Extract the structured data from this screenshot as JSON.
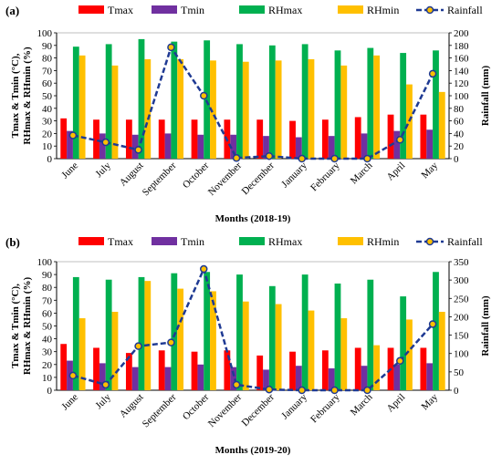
{
  "chart_data": [
    {
      "type": "bar",
      "panel_label": "(a)",
      "categories": [
        "June",
        "July",
        "August",
        "September",
        "October",
        "November",
        "December",
        "January",
        "February",
        "March",
        "April",
        "May"
      ],
      "xlabel": "Months (2018-19)",
      "ylabel_left": [
        "Tmax & Tmin (°C),",
        "RHmax & RHmin (%)"
      ],
      "ylabel_right": "Rainfall (mm)",
      "ylim_left": [
        0,
        100
      ],
      "ylim_right": [
        0,
        200
      ],
      "yticks_left": [
        0,
        10,
        20,
        30,
        40,
        50,
        60,
        70,
        80,
        90,
        100
      ],
      "yticks_right": [
        0,
        20,
        40,
        60,
        80,
        100,
        120,
        140,
        160,
        180,
        200
      ],
      "series": [
        {
          "name": "Tmax",
          "color": "#ff0000",
          "axis": "left",
          "kind": "bar",
          "values": [
            32,
            31,
            31,
            31,
            31,
            31,
            31,
            30,
            31,
            33,
            35,
            35
          ]
        },
        {
          "name": "Tmin",
          "color": "#7030a0",
          "axis": "left",
          "kind": "bar",
          "values": [
            22,
            20,
            19,
            20,
            19,
            19,
            18,
            17,
            18,
            20,
            22,
            23
          ]
        },
        {
          "name": "RHmax",
          "color": "#00b050",
          "axis": "left",
          "kind": "bar",
          "values": [
            89,
            91,
            95,
            93,
            94,
            91,
            90,
            91,
            86,
            88,
            84,
            86
          ]
        },
        {
          "name": "RHmin",
          "color": "#ffc000",
          "axis": "left",
          "kind": "bar",
          "values": [
            82,
            74,
            79,
            79,
            78,
            77,
            78,
            79,
            74,
            82,
            59,
            53
          ]
        },
        {
          "name": "Rainfall",
          "color": "#1f3a93",
          "axis": "right",
          "kind": "line",
          "values": [
            37,
            26,
            14,
            177,
            100,
            1,
            4,
            0,
            0,
            0,
            30,
            135
          ]
        }
      ]
    },
    {
      "type": "bar",
      "panel_label": "(b)",
      "categories": [
        "June",
        "July",
        "August",
        "September",
        "October",
        "November",
        "December",
        "January",
        "February",
        "March",
        "April",
        "May"
      ],
      "xlabel": "Months (2019-20)",
      "ylabel_left": [
        "Tmax & Tmin (°C),",
        "RHmax & RHmin (%)"
      ],
      "ylabel_right": "Rainfall (mm)",
      "ylim_left": [
        0,
        100
      ],
      "ylim_right": [
        0,
        350
      ],
      "yticks_left": [
        0,
        10,
        20,
        30,
        40,
        50,
        60,
        70,
        80,
        90,
        100
      ],
      "yticks_right": [
        0,
        50,
        100,
        150,
        200,
        250,
        300,
        350
      ],
      "series": [
        {
          "name": "Tmax",
          "color": "#ff0000",
          "axis": "left",
          "kind": "bar",
          "values": [
            36,
            33,
            29,
            31,
            30,
            31,
            27,
            30,
            31,
            33,
            33,
            33
          ]
        },
        {
          "name": "Tmin",
          "color": "#7030a0",
          "axis": "left",
          "kind": "bar",
          "values": [
            23,
            21,
            18,
            18,
            20,
            18,
            16,
            19,
            17,
            19,
            20,
            21
          ]
        },
        {
          "name": "RHmax",
          "color": "#00b050",
          "axis": "left",
          "kind": "bar",
          "values": [
            88,
            86,
            88,
            91,
            92,
            90,
            81,
            90,
            83,
            86,
            73,
            92
          ]
        },
        {
          "name": "RHmin",
          "color": "#ffc000",
          "axis": "left",
          "kind": "bar",
          "values": [
            56,
            61,
            85,
            79,
            77,
            69,
            67,
            62,
            56,
            35,
            55,
            61
          ]
        },
        {
          "name": "Rainfall",
          "color": "#1f3a93",
          "axis": "right",
          "kind": "line",
          "values": [
            40,
            15,
            120,
            130,
            330,
            15,
            2,
            0,
            0,
            0,
            80,
            180
          ]
        }
      ]
    }
  ]
}
